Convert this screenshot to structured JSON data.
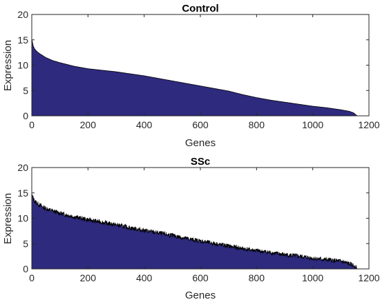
{
  "chart_data": [
    {
      "type": "area",
      "title": "Control",
      "xlabel": "Genes",
      "ylabel": "Expression",
      "xlim": [
        0,
        1200
      ],
      "ylim": [
        0,
        20
      ],
      "xticks": [
        "0",
        "200",
        "400",
        "600",
        "800",
        "1000",
        "1200"
      ],
      "yticks": [
        "0",
        "5",
        "10",
        "15",
        "20"
      ],
      "n_genes": 1158,
      "fill_color": "#2e2a7e",
      "edge_color": "#000000",
      "noise": "none",
      "series": [
        {
          "x": [
            0,
            5,
            10,
            20,
            30,
            50,
            75,
            100,
            150,
            200,
            250,
            300,
            350,
            400,
            450,
            500,
            550,
            600,
            650,
            700,
            750,
            800,
            850,
            900,
            950,
            1000,
            1050,
            1100,
            1130,
            1145,
            1158
          ],
          "y": [
            15.2,
            13.8,
            13.2,
            12.6,
            12.2,
            11.5,
            10.9,
            10.5,
            9.8,
            9.3,
            9.0,
            8.7,
            8.3,
            7.9,
            7.4,
            6.9,
            6.4,
            5.9,
            5.4,
            4.9,
            4.2,
            3.6,
            3.1,
            2.7,
            2.3,
            1.9,
            1.6,
            1.2,
            0.9,
            0.6,
            0.0
          ]
        }
      ]
    },
    {
      "type": "area",
      "title": "SSc",
      "xlabel": "Genes",
      "ylabel": "Expression",
      "xlim": [
        0,
        1200
      ],
      "ylim": [
        0,
        20
      ],
      "xticks": [
        "0",
        "200",
        "400",
        "600",
        "800",
        "1000",
        "1200"
      ],
      "yticks": [
        "0",
        "5",
        "10",
        "15",
        "20"
      ],
      "n_genes": 1158,
      "fill_color": "#2e2a7e",
      "edge_color": "#000000",
      "noise": "jagged",
      "series": [
        {
          "x": [
            0,
            5,
            10,
            20,
            40,
            60,
            100,
            150,
            200,
            250,
            300,
            350,
            400,
            450,
            500,
            550,
            600,
            650,
            700,
            750,
            800,
            850,
            900,
            950,
            1000,
            1050,
            1100,
            1130,
            1150,
            1158
          ],
          "y": [
            14.8,
            13.9,
            13.4,
            12.9,
            12.2,
            11.7,
            11.0,
            10.3,
            9.7,
            9.2,
            8.7,
            8.1,
            7.6,
            7.1,
            6.6,
            6.0,
            5.5,
            5.0,
            4.5,
            4.0,
            3.6,
            3.2,
            2.8,
            2.5,
            2.1,
            1.8,
            1.5,
            1.0,
            0.6,
            0.0
          ]
        }
      ]
    }
  ]
}
